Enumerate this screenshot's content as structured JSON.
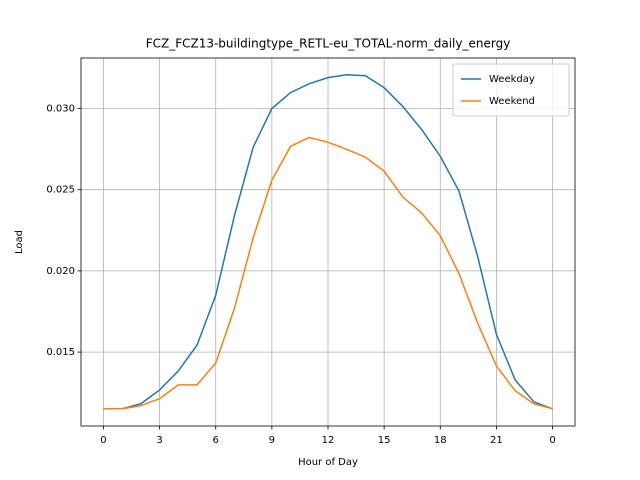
{
  "chart_data": {
    "type": "line",
    "title": "FCZ_FCZ13-buildingtype_RETL-eu_TOTAL-norm_daily_energy",
    "x_label": "Hour of Day",
    "y_label": "Load",
    "x": [
      0,
      1,
      2,
      3,
      4,
      5,
      6,
      7,
      8,
      9,
      10,
      11,
      12,
      13,
      14,
      15,
      16,
      17,
      18,
      19,
      20,
      21,
      22,
      23,
      24
    ],
    "series": [
      {
        "name": "Weekday",
        "color": "#1f77b4",
        "values": [
          0.01151,
          0.01151,
          0.01182,
          0.01267,
          0.01384,
          0.01543,
          0.0185,
          0.0234,
          0.02761,
          0.03,
          0.03098,
          0.03153,
          0.0319,
          0.03208,
          0.03202,
          0.03128,
          0.03012,
          0.02871,
          0.02706,
          0.02492,
          0.02088,
          0.0161,
          0.01329,
          0.01194,
          0.01151
        ]
      },
      {
        "name": "Weekend",
        "color": "#ff7f0e",
        "values": [
          0.01151,
          0.01151,
          0.0117,
          0.01213,
          0.01298,
          0.01298,
          0.01433,
          0.0177,
          0.02204,
          0.02559,
          0.02767,
          0.02822,
          0.02792,
          0.02749,
          0.027,
          0.02614,
          0.02455,
          0.02357,
          0.02217,
          0.01984,
          0.01678,
          0.01415,
          0.01262,
          0.01182,
          0.01151
        ]
      }
    ],
    "xlim": [
      -1.2,
      25.2
    ],
    "xticks": [
      0,
      3,
      6,
      9,
      12,
      15,
      18,
      21,
      {
        "value": 24,
        "label": "0"
      }
    ],
    "ylim": [
      0.01045,
      0.03311
    ],
    "yticks": [
      0.015,
      {
        "value": 0.02,
        "label": "0.020"
      },
      0.025,
      {
        "value": 0.03,
        "label": "0.030"
      }
    ],
    "grid": true,
    "legend": "upper-right"
  }
}
